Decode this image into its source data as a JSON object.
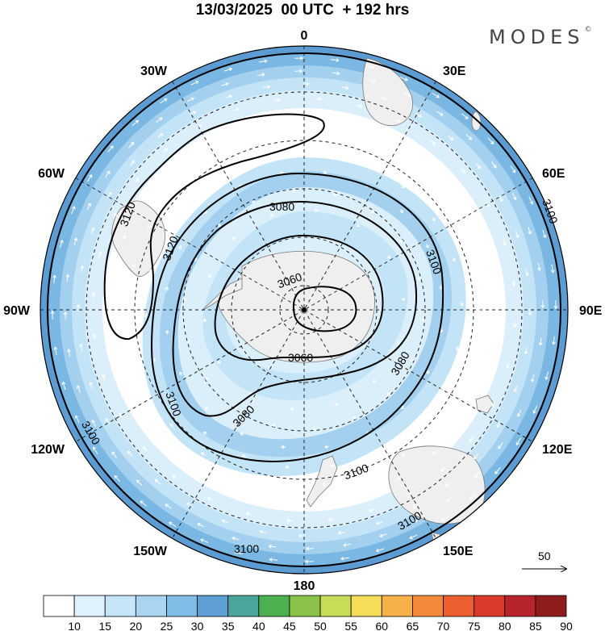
{
  "header": {
    "title": "13/03/2025  00 UTC  + 192 hrs",
    "brand": "MODES",
    "brand_mark": "©"
  },
  "longitude_labels": {
    "top": "0",
    "bottom": "180",
    "left": "90W",
    "right": "90E",
    "top_left_1": "30W",
    "top_left_2": "60W",
    "top_right_1": "30E",
    "top_right_2": "60E",
    "bottom_left_1": "120W",
    "bottom_left_2": "150W",
    "bottom_right_1": "120E",
    "bottom_right_2": "150E"
  },
  "contour_labels": [
    "3120",
    "3120",
    "3080",
    "3060",
    "3100",
    "3060",
    "3080",
    "3100",
    "3080",
    "3100",
    "3100",
    "3100",
    "3100",
    "3100"
  ],
  "vector_reference": {
    "label": "50"
  },
  "colorbar": {
    "ticks": [
      "10",
      "15",
      "20",
      "25",
      "30",
      "35",
      "40",
      "45",
      "50",
      "55",
      "60",
      "65",
      "70",
      "75",
      "80",
      "85",
      "90"
    ],
    "colors": [
      "#ffffff",
      "#dff1fc",
      "#c5e6f8",
      "#a9d5f0",
      "#80bde6",
      "#5e9fd6",
      "#4aa59a",
      "#4caf50",
      "#8bc34a",
      "#c8dc58",
      "#f5dd5a",
      "#f6b149",
      "#f28a3a",
      "#ea5e2f",
      "#d93a2a",
      "#b8242b",
      "#8f1c1c"
    ]
  },
  "map_colors": {
    "wind_15": "#dbeffb",
    "wind_20": "#c3e4f7",
    "wind_25": "#a3d0ee",
    "wind_30": "#7ab7e2",
    "wind_35": "#5c9cd3",
    "land": "#efefef"
  }
}
